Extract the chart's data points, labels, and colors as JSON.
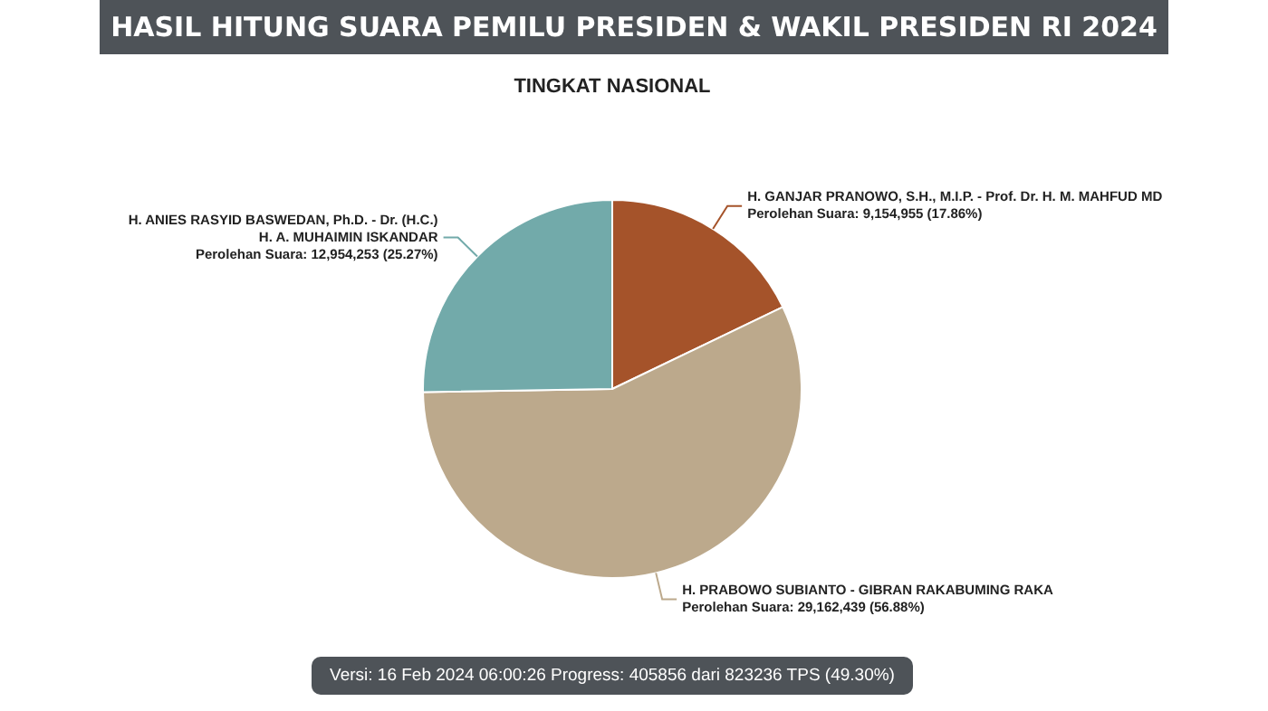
{
  "chart_data": {
    "type": "pie",
    "title": "HASIL HITUNG SUARA PEMILU PRESIDEN & WAKIL PRESIDEN RI 2024",
    "subtitle": "TINGKAT NASIONAL",
    "categories": [
      "H. GANJAR PRANOWO, S.H., M.I.P. - Prof. Dr. H. M. MAHFUD MD",
      "H. PRABOWO SUBIANTO - GIBRAN RAKABUMING RAKA",
      "H. ANIES RASYID BASWEDAN, Ph.D. - Dr. (H.C.) H. A. MUHAIMIN ISKANDAR"
    ],
    "values": [
      9154955,
      29162439,
      12954253
    ],
    "colors": [
      "#a5532a",
      "#bca98c",
      "#72aaaa"
    ],
    "value_labels": [
      "Perolehan Suara: 9,154,955 (17.86%)",
      "Perolehan Suara: 29,162,439 (56.88%)",
      "Perolehan Suara: 12,954,253 (25.27%)"
    ],
    "annotations": [
      "Versi: 16 Feb 2024 06:00:26 Progress: 405856 dari 823236 TPS (49.30%)"
    ]
  }
}
